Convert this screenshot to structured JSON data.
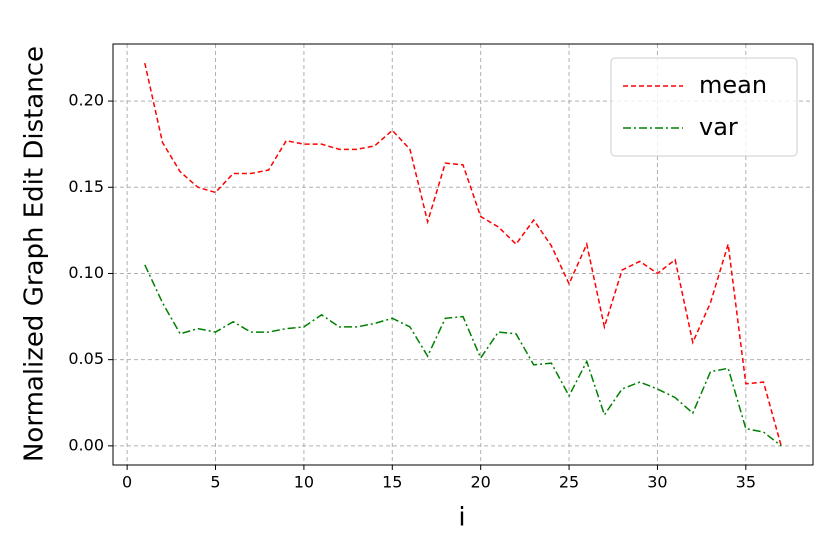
{
  "chart_data": {
    "type": "line",
    "x_label": "i",
    "y_label": "Normalized Graph Edit Distance",
    "x": [
      1,
      2,
      3,
      4,
      5,
      6,
      7,
      8,
      9,
      10,
      11,
      12,
      13,
      14,
      15,
      16,
      17,
      18,
      19,
      20,
      21,
      22,
      23,
      24,
      25,
      26,
      27,
      28,
      29,
      30,
      31,
      32,
      33,
      34,
      35,
      36,
      37
    ],
    "series": [
      {
        "name": "mean",
        "color": "#ff0000",
        "dash": "dashed",
        "values": [
          0.222,
          0.176,
          0.159,
          0.15,
          0.147,
          0.158,
          0.158,
          0.16,
          0.177,
          0.175,
          0.175,
          0.172,
          0.172,
          0.174,
          0.183,
          0.172,
          0.13,
          0.164,
          0.163,
          0.133,
          0.127,
          0.117,
          0.131,
          0.116,
          0.094,
          0.117,
          0.069,
          0.102,
          0.107,
          0.1,
          0.108,
          0.06,
          0.083,
          0.117,
          0.036,
          0.037,
          0.0
        ]
      },
      {
        "name": "var",
        "color": "#008000",
        "dash": "dashdot",
        "values": [
          0.105,
          0.083,
          0.065,
          0.068,
          0.066,
          0.072,
          0.066,
          0.066,
          0.068,
          0.069,
          0.076,
          0.069,
          0.069,
          0.071,
          0.074,
          0.069,
          0.052,
          0.074,
          0.075,
          0.051,
          0.066,
          0.065,
          0.047,
          0.048,
          0.029,
          0.049,
          0.018,
          0.033,
          0.037,
          0.033,
          0.028,
          0.019,
          0.043,
          0.045,
          0.01,
          0.008,
          0.0
        ]
      }
    ],
    "xlim": [
      -0.8,
      38.8
    ],
    "ylim": [
      -0.0111,
      0.2331
    ],
    "xticks": [
      0,
      5,
      10,
      15,
      20,
      25,
      30,
      35
    ],
    "yticks": [
      {
        "value": 0,
        "label": "0.00"
      },
      {
        "value": 0.05,
        "label": "0.05"
      },
      {
        "value": 0.1,
        "label": "0.10"
      },
      {
        "value": 0.15,
        "label": "0.15"
      },
      {
        "value": 0.2,
        "label": "0.20"
      }
    ],
    "grid": true,
    "legend": "upper right"
  }
}
